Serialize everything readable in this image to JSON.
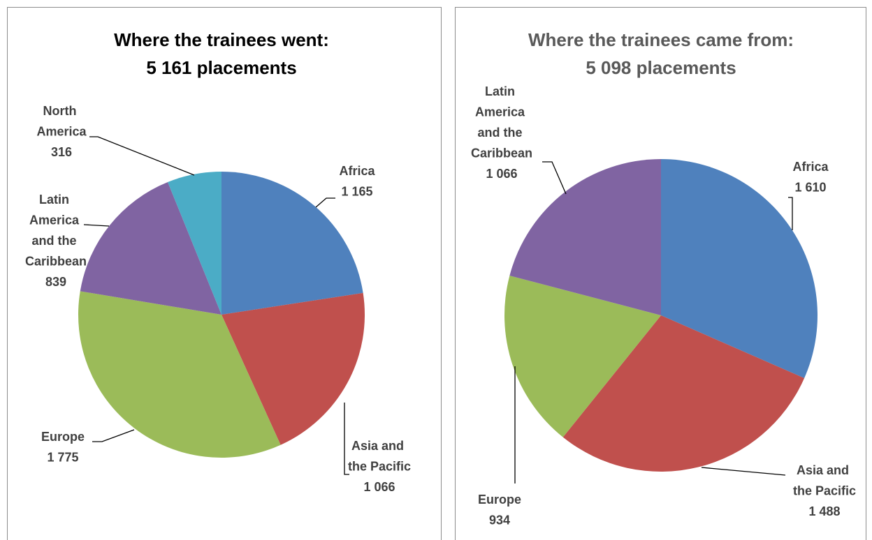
{
  "chart_data": [
    {
      "type": "pie",
      "title": "Where the trainees went:",
      "subtitle": "5 161 placements",
      "categories": [
        "Africa",
        "Asia and the Pacific",
        "Europe",
        "Latin America and the Caribbean",
        "North America"
      ],
      "values": [
        1165,
        1066,
        1775,
        839,
        316
      ],
      "value_labels": [
        "1 165",
        "1 066",
        "1 775",
        "839",
        "316"
      ],
      "colors": [
        "#4f81bd",
        "#c0504d",
        "#9bbb59",
        "#8064a2",
        "#4bacc6"
      ]
    },
    {
      "type": "pie",
      "title": "Where the trainees came from:",
      "subtitle": "5 098 placements",
      "categories": [
        "Africa",
        "Asia and the Pacific",
        "Europe",
        "Latin America and the Caribbean"
      ],
      "values": [
        1610,
        1488,
        934,
        1066
      ],
      "value_labels": [
        "1 610",
        "1 488",
        "934",
        "1 066"
      ],
      "colors": [
        "#4f81bd",
        "#c0504d",
        "#9bbb59",
        "#8064a2"
      ]
    }
  ]
}
